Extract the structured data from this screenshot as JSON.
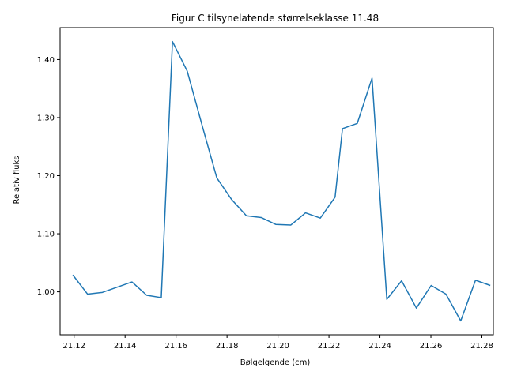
{
  "chart_data": {
    "type": "line",
    "title": "Figur C tilsynelatende størrelseklasse 11.48",
    "xlabel": "Bølgelgende (cm)",
    "ylabel": "Relativ fluks",
    "xlim": [
      21.1145,
      21.2845
    ],
    "ylim": [
      0.926,
      1.455
    ],
    "xticks": [
      21.12,
      21.14,
      21.16,
      21.18,
      21.2,
      21.22,
      21.24,
      21.26,
      21.28
    ],
    "xtick_labels": [
      "21.12",
      "21.14",
      "21.16",
      "21.18",
      "21.20",
      "21.22",
      "21.24",
      "21.26",
      "21.28"
    ],
    "yticks": [
      1.0,
      1.1,
      1.2,
      1.3,
      1.4
    ],
    "ytick_labels": [
      "1.00",
      "1.10",
      "1.20",
      "1.30",
      "1.40"
    ],
    "grid": false,
    "series": [
      {
        "color": "#1f77b4",
        "x": [
          21.1195,
          21.1253,
          21.1311,
          21.1369,
          21.1427,
          21.1485,
          21.1542,
          21.1586,
          21.1644,
          21.1702,
          21.176,
          21.1818,
          21.1876,
          21.1934,
          21.1992,
          21.205,
          21.2108,
          21.2166,
          21.2224,
          21.2253,
          21.2311,
          21.2369,
          21.2427,
          21.2485,
          21.2543,
          21.2601,
          21.2659,
          21.2717,
          21.2775,
          21.2833
        ],
        "y": [
          1.029,
          0.996,
          0.999,
          1.008,
          1.017,
          0.994,
          0.99,
          1.431,
          1.38,
          1.287,
          1.196,
          1.159,
          1.131,
          1.128,
          1.116,
          1.115,
          1.136,
          1.127,
          1.163,
          1.281,
          1.29,
          1.368,
          0.987,
          1.019,
          0.972,
          1.011,
          0.996,
          0.95,
          1.02,
          1.011
        ]
      }
    ]
  }
}
